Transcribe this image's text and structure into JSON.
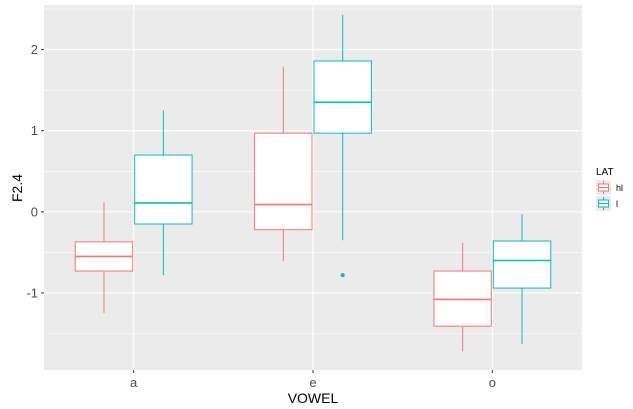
{
  "chart_data": {
    "type": "boxplot",
    "xlabel": "VOWEL",
    "ylabel": "F2.4",
    "categories": [
      "a",
      "e",
      "o"
    ],
    "ylim": [
      -1.95,
      2.55
    ],
    "yticks": [
      -1,
      0,
      1,
      2
    ],
    "ytick_labels": [
      "-1",
      "0",
      "1",
      "2"
    ],
    "grid": true,
    "legend": {
      "title": "LAT",
      "position": "right"
    },
    "colors": {
      "panel": "#ebebeb",
      "grid": "#ffffff",
      "axis_text": "#4d4d4d"
    },
    "series": [
      {
        "name": "hl",
        "color": "#F8766D",
        "boxes": [
          {
            "category": "a",
            "min": -1.25,
            "q1": -0.73,
            "median": -0.55,
            "q3": -0.37,
            "max": 0.12,
            "outliers": []
          },
          {
            "category": "e",
            "min": -0.61,
            "q1": -0.22,
            "median": 0.09,
            "q3": 0.97,
            "max": 1.79,
            "outliers": []
          },
          {
            "category": "o",
            "min": -1.72,
            "q1": -1.41,
            "median": -1.08,
            "q3": -0.73,
            "max": -0.38,
            "outliers": []
          }
        ]
      },
      {
        "name": "l",
        "color": "#00BFC4",
        "boxes": [
          {
            "category": "a",
            "min": -0.78,
            "q1": -0.15,
            "median": 0.11,
            "q3": 0.7,
            "max": 1.25,
            "outliers": []
          },
          {
            "category": "e",
            "min": -0.35,
            "q1": 0.97,
            "median": 1.35,
            "q3": 1.86,
            "max": 2.43,
            "outliers": [
              -0.78
            ]
          },
          {
            "category": "o",
            "min": -1.63,
            "q1": -0.94,
            "median": -0.6,
            "q3": -0.36,
            "max": -0.03,
            "outliers": []
          }
        ]
      }
    ]
  }
}
